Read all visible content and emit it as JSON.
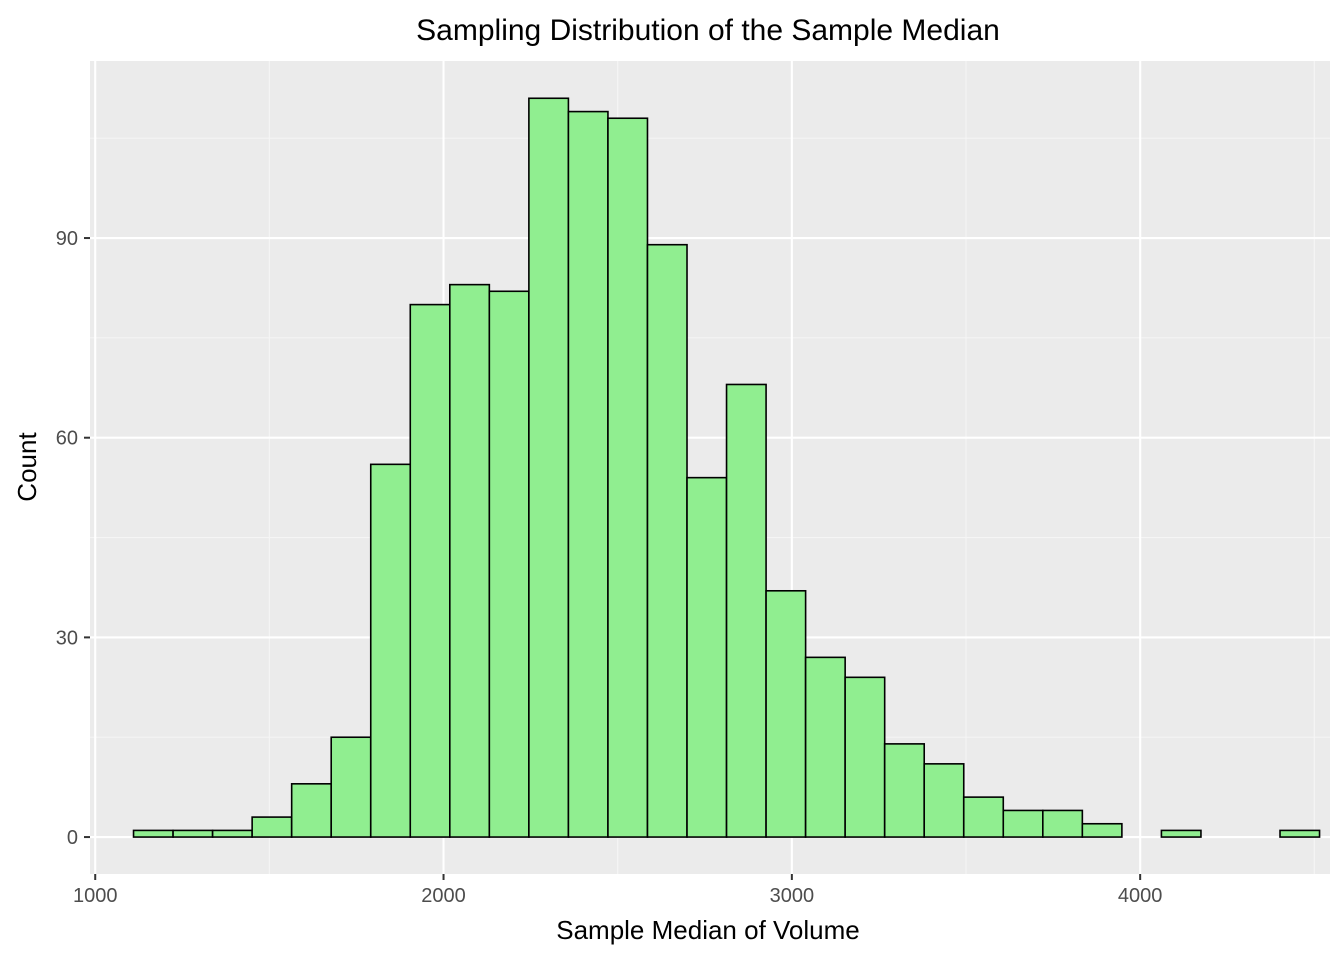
{
  "chart_data": {
    "type": "bar",
    "subtype": "histogram",
    "title": "Sampling Distribution of the Sample Median",
    "xlabel": "Sample Median of Volume",
    "ylabel": "Count",
    "x_ticks": [
      1000,
      2000,
      3000,
      4000
    ],
    "y_ticks": [
      0,
      30,
      60,
      90
    ],
    "xlim": [
      985,
      4545
    ],
    "ylim": [
      -5.55,
      116.6
    ],
    "bin_width": 113.5,
    "bins": [
      {
        "x0": 1110.0,
        "x1": 1223.5,
        "count": 1
      },
      {
        "x0": 1223.5,
        "x1": 1337.0,
        "count": 1
      },
      {
        "x0": 1337.0,
        "x1": 1450.5,
        "count": 1
      },
      {
        "x0": 1450.5,
        "x1": 1564.0,
        "count": 3
      },
      {
        "x0": 1564.0,
        "x1": 1677.5,
        "count": 8
      },
      {
        "x0": 1677.5,
        "x1": 1791.0,
        "count": 15
      },
      {
        "x0": 1791.0,
        "x1": 1904.5,
        "count": 56
      },
      {
        "x0": 1904.5,
        "x1": 2018.0,
        "count": 80
      },
      {
        "x0": 2018.0,
        "x1": 2131.5,
        "count": 83
      },
      {
        "x0": 2131.5,
        "x1": 2245.0,
        "count": 82
      },
      {
        "x0": 2245.0,
        "x1": 2358.5,
        "count": 111
      },
      {
        "x0": 2358.5,
        "x1": 2472.0,
        "count": 109
      },
      {
        "x0": 2472.0,
        "x1": 2585.5,
        "count": 108
      },
      {
        "x0": 2585.5,
        "x1": 2699.0,
        "count": 89
      },
      {
        "x0": 2699.0,
        "x1": 2812.5,
        "count": 54
      },
      {
        "x0": 2812.5,
        "x1": 2926.0,
        "count": 68
      },
      {
        "x0": 2926.0,
        "x1": 3039.5,
        "count": 37
      },
      {
        "x0": 3039.5,
        "x1": 3153.0,
        "count": 27
      },
      {
        "x0": 3153.0,
        "x1": 3266.5,
        "count": 24
      },
      {
        "x0": 3266.5,
        "x1": 3380.0,
        "count": 14
      },
      {
        "x0": 3380.0,
        "x1": 3493.5,
        "count": 11
      },
      {
        "x0": 3493.5,
        "x1": 3607.0,
        "count": 6
      },
      {
        "x0": 3607.0,
        "x1": 3720.5,
        "count": 4
      },
      {
        "x0": 3720.5,
        "x1": 3834.0,
        "count": 4
      },
      {
        "x0": 3834.0,
        "x1": 3947.5,
        "count": 2
      },
      {
        "x0": 3947.5,
        "x1": 4061.0,
        "count": 0
      },
      {
        "x0": 4061.0,
        "x1": 4174.5,
        "count": 1
      },
      {
        "x0": 4174.5,
        "x1": 4288.0,
        "count": 0
      },
      {
        "x0": 4288.0,
        "x1": 4401.5,
        "count": 0
      },
      {
        "x0": 4401.5,
        "x1": 4515.0,
        "count": 1
      }
    ],
    "grid": true,
    "legend": "none"
  },
  "colors": {
    "bar_fill": "#90ee90",
    "bar_stroke": "#000000",
    "panel_background": "#ebebeb",
    "grid_major": "#ffffff",
    "grid_minor": "#f5f5f5",
    "tick_text": "#4d4d4d"
  }
}
